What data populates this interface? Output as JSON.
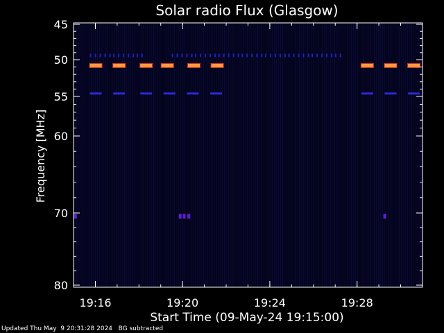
{
  "chart_data": {
    "type": "heatmap",
    "title": "Solar radio Flux (Glasgow)",
    "xlabel": "Start Time (09-May-24 19:15:00)",
    "ylabel": "Frequency [MHz]",
    "x_range_minutes": [
      19.25,
      19.5167
    ],
    "y_range_mhz": [
      45,
      80
    ],
    "x_ticks": [
      {
        "value": 19.2667,
        "label": "19:16"
      },
      {
        "value": 19.3333,
        "label": "19:20"
      },
      {
        "value": 19.4,
        "label": "19:24"
      },
      {
        "value": 19.4667,
        "label": "19:28"
      }
    ],
    "y_ticks": [
      {
        "value": 45,
        "label": "45"
      },
      {
        "value": 50,
        "label": "50"
      },
      {
        "value": 55,
        "label": "55"
      },
      {
        "value": 60,
        "label": "60"
      },
      {
        "value": 70,
        "label": "70"
      },
      {
        "value": 80,
        "label": "80"
      }
    ],
    "emission_bands": [
      {
        "freq_mhz": 50.8,
        "intensity": "high",
        "color": "#ff9a3c",
        "intervals": [
          [
            19.2625,
            19.2975
          ],
          [
            19.301,
            19.315
          ],
          [
            19.3172,
            19.3342
          ],
          [
            19.3375,
            19.3675
          ],
          [
            19.47,
            19.5167
          ]
        ]
      },
      {
        "freq_mhz": 54.6,
        "intensity": "medium",
        "color": "#2a2ad8",
        "intervals": [
          [
            19.2625,
            19.2975
          ],
          [
            19.301,
            19.3675
          ],
          [
            19.47,
            19.5167
          ]
        ]
      },
      {
        "freq_mhz": 49.4,
        "intensity": "low",
        "color": "#2020c0",
        "intervals": [
          [
            19.2625,
            19.305
          ],
          [
            19.325,
            19.454
          ]
        ]
      }
    ],
    "spots": [
      {
        "minute": 19.2515,
        "freq_mhz": 70.4,
        "color": "#5a20d0"
      },
      {
        "minute": 19.3315,
        "freq_mhz": 70.4,
        "color": "#5a20d0"
      },
      {
        "minute": 19.3345,
        "freq_mhz": 70.4,
        "color": "#5a20d0"
      },
      {
        "minute": 19.3382,
        "freq_mhz": 70.4,
        "color": "#5a20d0"
      },
      {
        "minute": 19.4878,
        "freq_mhz": 70.4,
        "color": "#5a20d0"
      }
    ]
  },
  "footer": {
    "updated": "Updated Thu May  9 20:31:28 2024",
    "note": "BG subtracted"
  }
}
